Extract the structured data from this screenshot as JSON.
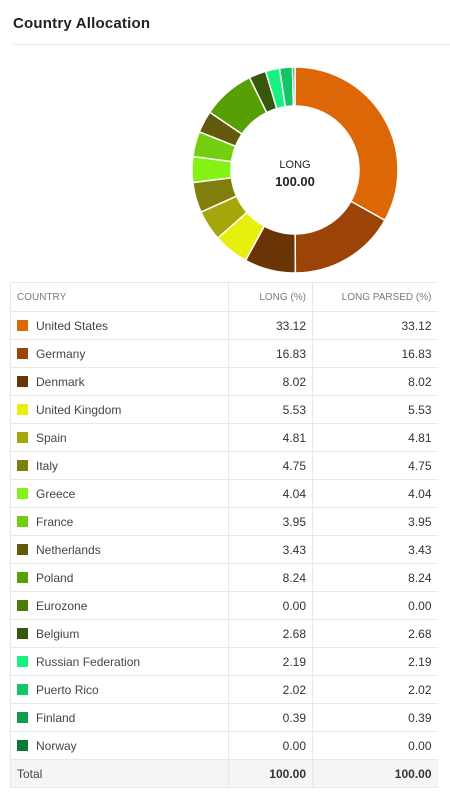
{
  "panel": {
    "title": "Country Allocation"
  },
  "chart_data": {
    "type": "pie",
    "donut": true,
    "center_label": "LONG",
    "center_value": "100.00",
    "slices": [
      {
        "label": "United States",
        "value": 33.12,
        "color": "#dd6606"
      },
      {
        "label": "Germany",
        "value": 16.83,
        "color": "#9c4307"
      },
      {
        "label": "Denmark",
        "value": 8.02,
        "color": "#6a3506"
      },
      {
        "label": "United Kingdom",
        "value": 5.53,
        "color": "#e7ef0c"
      },
      {
        "label": "Spain",
        "value": 4.81,
        "color": "#a4a609"
      },
      {
        "label": "Italy",
        "value": 4.75,
        "color": "#807f0d"
      },
      {
        "label": "Greece",
        "value": 4.04,
        "color": "#84f214"
      },
      {
        "label": "France",
        "value": 3.95,
        "color": "#72ce0f"
      },
      {
        "label": "Netherlands",
        "value": 3.43,
        "color": "#615a0c"
      },
      {
        "label": "Poland",
        "value": 8.24,
        "color": "#56a006"
      },
      {
        "label": "Eurozone",
        "value": 0.0,
        "color": "#4b7c06"
      },
      {
        "label": "Belgium",
        "value": 2.68,
        "color": "#35580c"
      },
      {
        "label": "Russian Federation",
        "value": 2.19,
        "color": "#17f27e"
      },
      {
        "label": "Puerto Rico",
        "value": 2.02,
        "color": "#10c665"
      },
      {
        "label": "Finland",
        "value": 0.39,
        "color": "#0e9e4e"
      },
      {
        "label": "Norway",
        "value": 0.0,
        "color": "#0c7838"
      }
    ]
  },
  "table": {
    "headers": [
      "COUNTRY",
      "LONG (%)",
      "LONG PARSED (%)"
    ],
    "rows": [
      {
        "country": "United States",
        "long": "33.12",
        "long_parsed": "33.12",
        "color": "#dd6606"
      },
      {
        "country": "Germany",
        "long": "16.83",
        "long_parsed": "16.83",
        "color": "#9c4307"
      },
      {
        "country": "Denmark",
        "long": "8.02",
        "long_parsed": "8.02",
        "color": "#6a3506"
      },
      {
        "country": "United Kingdom",
        "long": "5.53",
        "long_parsed": "5.53",
        "color": "#e7ef0c"
      },
      {
        "country": "Spain",
        "long": "4.81",
        "long_parsed": "4.81",
        "color": "#a4a609"
      },
      {
        "country": "Italy",
        "long": "4.75",
        "long_parsed": "4.75",
        "color": "#807f0d"
      },
      {
        "country": "Greece",
        "long": "4.04",
        "long_parsed": "4.04",
        "color": "#84f214"
      },
      {
        "country": "France",
        "long": "3.95",
        "long_parsed": "3.95",
        "color": "#72ce0f"
      },
      {
        "country": "Netherlands",
        "long": "3.43",
        "long_parsed": "3.43",
        "color": "#615a0c"
      },
      {
        "country": "Poland",
        "long": "8.24",
        "long_parsed": "8.24",
        "color": "#56a006"
      },
      {
        "country": "Eurozone",
        "long": "0.00",
        "long_parsed": "0.00",
        "color": "#4b7c06"
      },
      {
        "country": "Belgium",
        "long": "2.68",
        "long_parsed": "2.68",
        "color": "#35580c"
      },
      {
        "country": "Russian Federation",
        "long": "2.19",
        "long_parsed": "2.19",
        "color": "#17f27e"
      },
      {
        "country": "Puerto Rico",
        "long": "2.02",
        "long_parsed": "2.02",
        "color": "#10c665"
      },
      {
        "country": "Finland",
        "long": "0.39",
        "long_parsed": "0.39",
        "color": "#0e9e4e"
      },
      {
        "country": "Norway",
        "long": "0.00",
        "long_parsed": "0.00",
        "color": "#0c7838"
      }
    ],
    "total": {
      "label": "Total",
      "long": "100.00",
      "long_parsed": "100.00"
    }
  }
}
